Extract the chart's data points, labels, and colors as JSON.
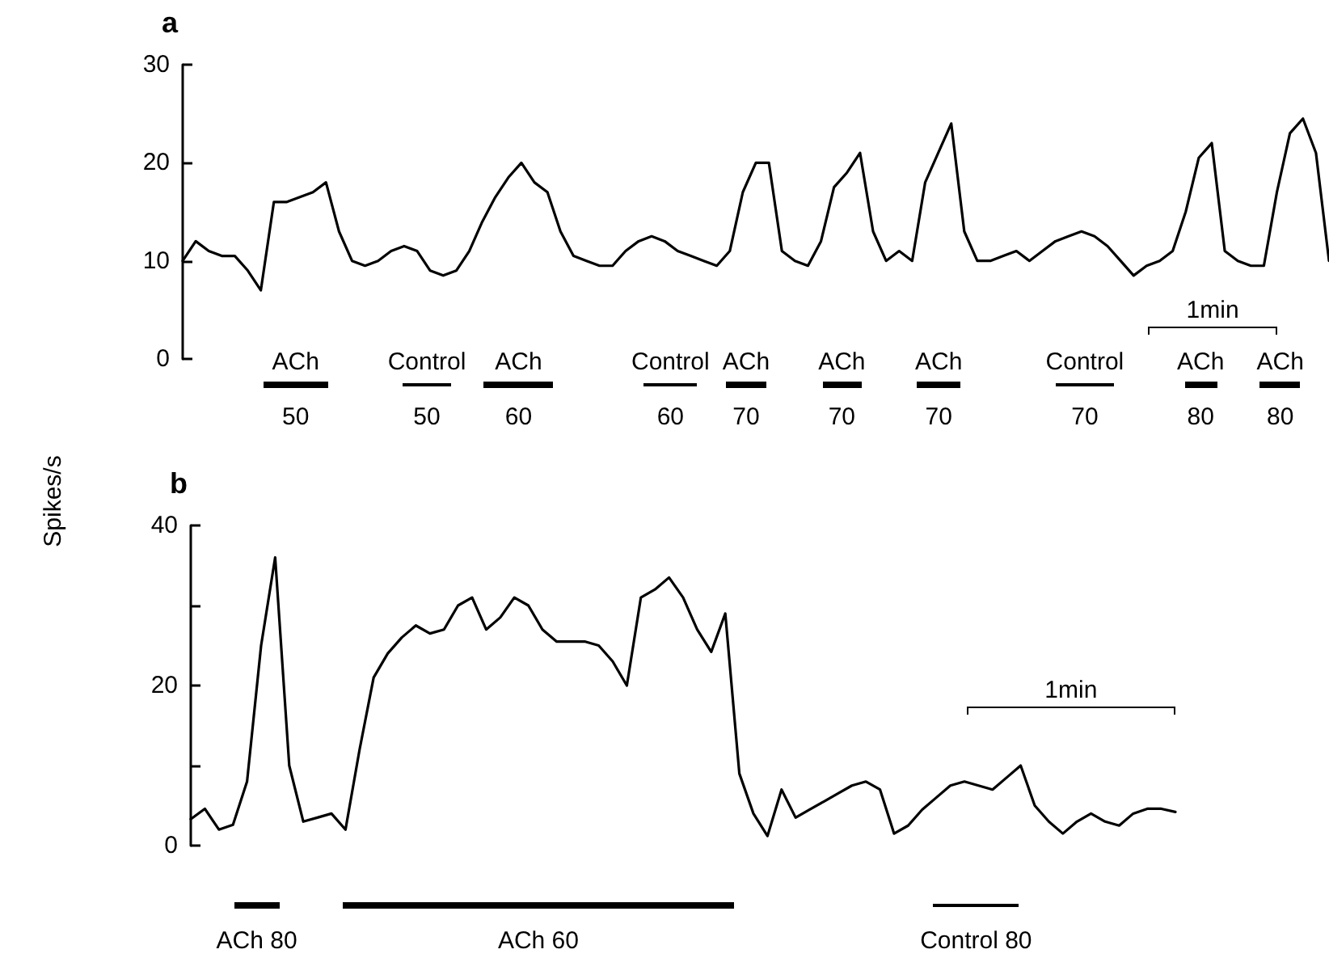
{
  "chart_data": [
    {
      "type": "line",
      "title": "a",
      "ylabel": "Spikes/s",
      "ylim": [
        0,
        30
      ],
      "yticks": [
        0,
        10,
        20,
        30
      ],
      "tick_labels": "y",
      "marker": "none",
      "categories": [
        null,
        null,
        null,
        null,
        null,
        null,
        null,
        null,
        null,
        null,
        null,
        null,
        null,
        null,
        null,
        null,
        null,
        null,
        null,
        null,
        null,
        null,
        null,
        null,
        null,
        null,
        null,
        null,
        null,
        null,
        null,
        null,
        null,
        null,
        null,
        null,
        null,
        null,
        null,
        null,
        null,
        null,
        null,
        null,
        null,
        null,
        null,
        null,
        null,
        null,
        null,
        null,
        null,
        null,
        null,
        null,
        null,
        null,
        null,
        null,
        null,
        null,
        null,
        null,
        null,
        null,
        null,
        null,
        null,
        null,
        null,
        null,
        null,
        null,
        null,
        null,
        null,
        null,
        null,
        null,
        null,
        null,
        null,
        null,
        null,
        null,
        null,
        null,
        null
      ],
      "series": [
        {
          "color": "#000000",
          "values": [
            10,
            12,
            11,
            10.5,
            10.5,
            9,
            7,
            16,
            16,
            16.5,
            17,
            18,
            13,
            10,
            9.5,
            10,
            11,
            11.5,
            11,
            9,
            8.5,
            9,
            11,
            14,
            16.5,
            18.5,
            20,
            18,
            17,
            13,
            10.5,
            10,
            9.5,
            9.5,
            11,
            12,
            12.5,
            12,
            11,
            10.5,
            10,
            9.5,
            11,
            17,
            20,
            20,
            11,
            10,
            9.5,
            12,
            17.5,
            19,
            21,
            13,
            10,
            11,
            10,
            18,
            21,
            24,
            13,
            10,
            10,
            10.5,
            11,
            10,
            11,
            12,
            12.5,
            13,
            12.5,
            11.5,
            10,
            8.5,
            9.5,
            10,
            11,
            15,
            20.5,
            22,
            11,
            10,
            9.5,
            9.5,
            17,
            23,
            24.5,
            21,
            10
          ]
        }
      ],
      "annotations": [
        "ACh",
        "50",
        "Control",
        "50",
        "ACh",
        "60",
        "Control",
        "60",
        "ACh",
        "70",
        "ACh",
        "70",
        "ACh",
        "70",
        "Control",
        "70",
        "ACh",
        "80",
        "ACh",
        "80",
        "1min"
      ]
    },
    {
      "type": "line",
      "title": "b",
      "ylim": [
        0,
        40
      ],
      "yticks": [
        0,
        {
          "value": 10,
          "label": null
        },
        20,
        {
          "value": 30,
          "label": null
        },
        40
      ],
      "tick_labels": "y",
      "marker": "none",
      "categories": [
        null,
        null,
        null,
        null,
        null,
        null,
        null,
        null,
        null,
        null,
        null,
        null,
        null,
        null,
        null,
        null,
        null,
        null,
        null,
        null,
        null,
        null,
        null,
        null,
        null,
        null,
        null,
        null,
        null,
        null,
        null,
        null,
        null,
        null,
        null,
        null,
        null,
        null,
        null,
        null,
        null,
        null,
        null,
        null,
        null,
        null,
        null,
        null,
        null,
        null,
        null,
        null,
        null,
        null,
        null,
        null,
        null,
        null,
        null,
        null,
        null,
        null,
        null,
        null,
        null,
        null,
        null,
        null,
        null,
        null,
        null
      ],
      "series": [
        {
          "color": "#000000",
          "values": [
            3.3,
            4.6,
            2,
            2.6,
            8,
            25,
            36,
            10,
            3,
            3.5,
            4,
            2,
            12,
            21,
            24,
            26,
            27.5,
            26.5,
            27,
            30,
            31,
            27,
            28.5,
            31,
            30,
            27,
            25.5,
            25.5,
            25.5,
            25,
            23,
            20,
            31,
            32,
            33.5,
            31,
            27,
            24.2,
            29,
            9,
            4,
            1.2,
            7,
            3.5,
            4.5,
            5.5,
            6.5,
            7.5,
            8,
            7,
            1.5,
            2.5,
            4.5,
            6,
            7.5,
            8,
            7.5,
            7,
            8.5,
            10,
            5,
            3,
            1.5,
            3,
            4,
            3,
            2.5,
            4,
            4.6,
            4.6,
            4.2
          ]
        }
      ],
      "annotations": [
        "ACh 80",
        "ACh 60",
        "Control 80",
        "1min"
      ]
    }
  ]
}
